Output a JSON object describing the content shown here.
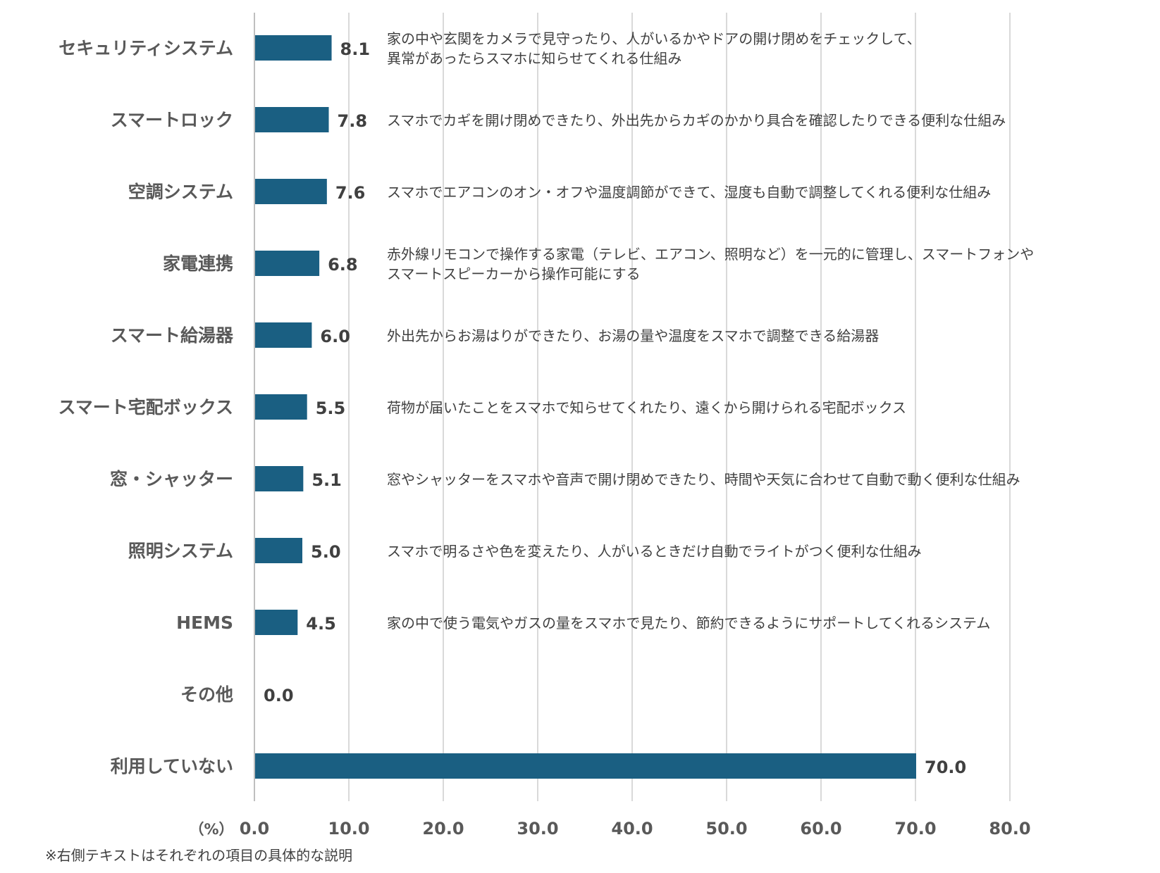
{
  "chart_data": {
    "type": "bar",
    "orientation": "horizontal",
    "categories": [
      "セキュリティシステム",
      "スマートロック",
      "空調システム",
      "家電連携",
      "スマート給湯器",
      "スマート宅配ボックス",
      "窓・シャッター",
      "照明システム",
      "HEMS",
      "その他",
      "利用していない"
    ],
    "values": [
      8.1,
      7.8,
      7.6,
      6.8,
      6.0,
      5.5,
      5.1,
      5.0,
      4.5,
      0.0,
      70.0
    ],
    "value_labels": [
      "8.1",
      "7.8",
      "7.6",
      "6.8",
      "6.0",
      "5.5",
      "5.1",
      "5.0",
      "4.5",
      "0.0",
      "70.0"
    ],
    "descriptions": [
      [
        "家の中や玄関をカメラで見守ったり、人がいるかやドアの開け閉めをチェックして、",
        "異常があったらスマホに知らせてくれる仕組み"
      ],
      [
        "スマホでカギを開け閉めできたり、外出先からカギのかかり具合を確認したりできる便利な仕組み"
      ],
      [
        "スマホでエアコンのオン・オフや温度調節ができて、湿度も自動で調整してくれる便利な仕組み"
      ],
      [
        "赤外線リモコンで操作する家電（テレビ、エアコン、照明など）を一元的に管理し、スマートフォンや",
        "スマートスピーカーから操作可能にする"
      ],
      [
        "外出先からお湯はりができたり、お湯の量や温度をスマホで調整できる給湯器"
      ],
      [
        "荷物が届いたことをスマホで知らせてくれたり、遠くから開けられる宅配ボックス"
      ],
      [
        "窓やシャッターをスマホや音声で開け閉めできたり、時間や天気に合わせて自動で動く便利な仕組み"
      ],
      [
        "スマホで明るさや色を変えたり、人がいるときだけ自動でライトがつく便利な仕組み"
      ],
      [
        "家の中で使う電気やガスの量をスマホで見たり、節約できるようにサポートしてくれるシステム"
      ],
      [],
      []
    ],
    "xlim": [
      0,
      80
    ],
    "xticks": [
      0,
      10,
      20,
      30,
      40,
      50,
      60,
      70,
      80
    ],
    "xtick_labels": [
      "0.0",
      "10.0",
      "20.0",
      "30.0",
      "40.0",
      "50.0",
      "60.0",
      "70.0",
      "80.0"
    ],
    "xlabel": "（%）",
    "grid": true,
    "bar_color": "#1a5f82"
  },
  "footnote": "※右側テキストはそれぞれの項目の具体的な説明"
}
